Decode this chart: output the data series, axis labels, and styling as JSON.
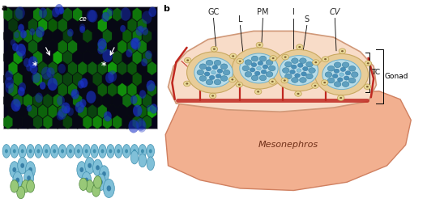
{
  "panel_a_label": "a",
  "panel_b_label": "b",
  "mesonephros_text": "Mesonephros",
  "gonad_text": "Gonad",
  "tc_text": "TC",
  "bg_color": "#ffffff",
  "micro_bg": "#050518",
  "mesonephros_color": "#f2b090",
  "mesonephros_edge": "#d08060",
  "gonad_fill": "#f8dcc8",
  "gonad_edge": "#d09878",
  "gonad_inner_fill": "#fae8d8",
  "blood_vessel_color": "#c02820",
  "tubule_outer_fill": "#e8cc98",
  "tubule_outer_edge": "#c8a860",
  "tubule_inner_fill": "#b8dce8",
  "tubule_cell_fill": "#60a0c0",
  "tubule_cell_edge": "#3880a0",
  "interstitial_fill": "#e8d898",
  "interstitial_edge": "#c0a050",
  "interstitial_dot": "#806030",
  "sertoli_fill": "#80c0d8",
  "sertoli_edge": "#4090b0",
  "germ_blue_fill": "#80c0d8",
  "germ_blue_edge": "#4090b0",
  "germ_green_fill": "#98c878",
  "germ_green_edge": "#508840",
  "label_color": "#222222",
  "label_fontsize": 7,
  "arrow_color": "#ffffff"
}
